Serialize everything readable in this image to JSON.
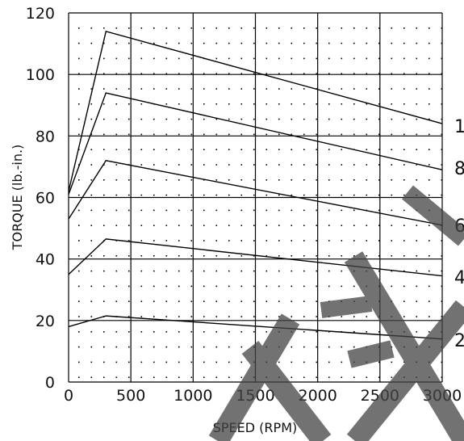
{
  "chart_data": {
    "type": "line",
    "xlabel": "SPEED (RPM)",
    "ylabel": "TORQUE (lb.-in.)",
    "xlim": [
      0,
      3000
    ],
    "ylim": [
      0,
      120
    ],
    "xticks": [
      0,
      500,
      1000,
      1500,
      2000,
      2500,
      3000
    ],
    "yticks": [
      0,
      20,
      40,
      60,
      80,
      100,
      120
    ],
    "grid": true,
    "series": [
      {
        "name": "1",
        "x": [
          0,
          300,
          3000
        ],
        "y": [
          62,
          114,
          84
        ]
      },
      {
        "name": "8",
        "x": [
          0,
          300,
          3000
        ],
        "y": [
          61,
          94,
          69
        ]
      },
      {
        "name": "6",
        "x": [
          0,
          300,
          3000
        ],
        "y": [
          53,
          72,
          51
        ]
      },
      {
        "name": "4",
        "x": [
          0,
          300,
          3000
        ],
        "y": [
          35,
          46.5,
          34.5
        ]
      },
      {
        "name": "2",
        "x": [
          0,
          300,
          3000
        ],
        "y": [
          18,
          21.5,
          14
        ]
      }
    ]
  }
}
